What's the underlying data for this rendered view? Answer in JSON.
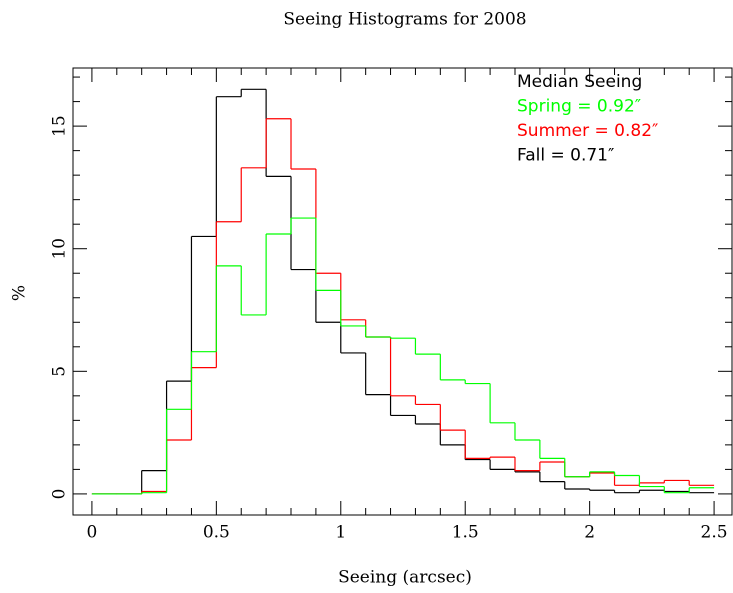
{
  "chart_data": {
    "type": "histogram",
    "title": "Seeing Histograms for 2008",
    "x_label": "Seeing (arcsec)",
    "y_label": "%",
    "legend_title": "Median Seeing",
    "legend": "upper right",
    "bins": [
      0,
      0.1,
      0.2,
      0.3,
      0.4,
      0.5,
      0.6,
      0.7,
      0.8,
      0.9,
      1.0,
      1.1,
      1.2,
      1.3,
      1.4,
      1.5,
      1.6,
      1.7,
      1.8,
      1.9,
      2.0,
      2.1,
      2.2,
      2.3,
      2.4,
      2.5
    ],
    "series": [
      {
        "name": "Spring = 0.92″",
        "color": "#00ff00",
        "values": [
          0,
          0,
          0.05,
          3.45,
          5.8,
          9.3,
          7.3,
          10.6,
          11.25,
          8.3,
          6.85,
          6.4,
          6.35,
          5.7,
          4.65,
          4.5,
          2.9,
          2.2,
          1.45,
          0.7,
          0.9,
          0.75,
          0.3,
          0.05,
          0.25
        ]
      },
      {
        "name": "Summer = 0.82″",
        "color": "#ff0000",
        "values": [
          0,
          0,
          0.1,
          2.2,
          5.15,
          11.1,
          13.3,
          15.3,
          13.25,
          9.0,
          7.1,
          6.4,
          4.0,
          3.65,
          2.6,
          1.45,
          1.5,
          0.95,
          1.3,
          0.7,
          0.85,
          0.35,
          0.45,
          0.55,
          0.35
        ]
      },
      {
        "name": "Fall = 0.71″",
        "color": "#000000",
        "values": [
          0,
          0,
          0.95,
          4.6,
          10.5,
          16.2,
          16.5,
          12.95,
          9.15,
          7.0,
          5.75,
          4.05,
          3.2,
          2.85,
          2.0,
          1.4,
          1.0,
          0.9,
          0.5,
          0.2,
          0.15,
          0.05,
          0.15,
          0.1,
          0.05
        ]
      }
    ],
    "xlim": [
      -0.076,
      2.572
    ],
    "ylim": [
      -0.86,
      17.37
    ],
    "xticks": [
      0,
      0.5,
      1,
      1.5,
      2,
      2.5
    ],
    "xminorticks": [
      0.1,
      0.2,
      0.3,
      0.4,
      0.6,
      0.7,
      0.8,
      0.9,
      1.1,
      1.2,
      1.3,
      1.4,
      1.6,
      1.7,
      1.8,
      1.9,
      2.1,
      2.2,
      2.3,
      2.4
    ],
    "yticks": [
      0,
      5,
      10,
      15
    ],
    "yminorticks": [
      1,
      2,
      3,
      4,
      6,
      7,
      8,
      9,
      11,
      12,
      13,
      14,
      16,
      17
    ]
  }
}
